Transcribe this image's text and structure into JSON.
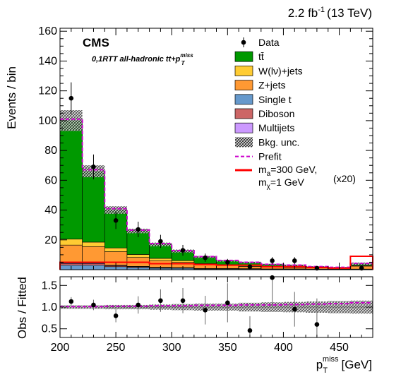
{
  "header": {
    "lumi": "2.2 fb",
    "lumi_exp": "-1",
    "energy": "(13 TeV)",
    "experiment": "CMS",
    "subtitle": "0,1RTT all-hadronic tt+p",
    "subtitle_sup": "miss",
    "subtitle_sub": "T"
  },
  "chart_data": [
    {
      "type": "bar",
      "stacked": true,
      "ylabel": "Events / bin",
      "ylim": [
        0,
        162
      ],
      "yticks": [
        20,
        40,
        60,
        80,
        100,
        120,
        140,
        160
      ],
      "xlim": [
        200,
        480
      ],
      "bin_edges": [
        200,
        220,
        240,
        260,
        280,
        300,
        320,
        340,
        360,
        380,
        400,
        420,
        440,
        460,
        480
      ],
      "series": [
        {
          "name": "Single t",
          "color": "#6699cc",
          "values": [
            3,
            3,
            2,
            1.5,
            1,
            1,
            0.5,
            0.5,
            0.5,
            0.3,
            0.3,
            0.2,
            0.2,
            0.2
          ]
        },
        {
          "name": "Diboson",
          "color": "#cc6666",
          "values": [
            1,
            1,
            0.8,
            0.5,
            0.4,
            0.3,
            0.2,
            0.2,
            0.1,
            0.1,
            0.1,
            0.1,
            0.1,
            0.1
          ]
        },
        {
          "name": "Multijets",
          "color": "#cc99ff",
          "values": [
            0.5,
            0.5,
            0.3,
            0.2,
            0.2,
            0.1,
            0.1,
            0.1,
            0.1,
            0.1,
            0.1,
            0.1,
            0.1,
            0.1
          ]
        },
        {
          "name": "Z+jets",
          "color": "#ff9933",
          "values": [
            12,
            11,
            9,
            6,
            4.5,
            3.5,
            2.5,
            2,
            1.5,
            1.3,
            1,
            0.8,
            0.6,
            2
          ]
        },
        {
          "name": "W(lν)+jets",
          "color": "#ffcc33",
          "values": [
            4,
            3,
            2.5,
            2,
            1.5,
            1.2,
            0.8,
            0.6,
            0.5,
            0.4,
            0.3,
            0.2,
            0.2,
            0.4
          ]
        },
        {
          "name": "tt̄",
          "color": "#009900",
          "values": [
            79.5,
            47.5,
            25.4,
            15.8,
            9.4,
            6.4,
            4.4,
            2.6,
            2.1,
            1.3,
            1.2,
            0.6,
            0.3,
            1.2
          ]
        }
      ],
      "total_prediction": [
        100,
        66,
        40,
        26,
        17,
        12.5,
        8.5,
        6,
        4.8,
        3.5,
        3,
        2,
        1.5,
        4
      ],
      "bkg_unc": [
        7,
        4,
        2.5,
        1.5,
        1.2,
        1,
        0.7,
        0.5,
        0.5,
        0.4,
        0.4,
        0.3,
        0.3,
        0.8
      ],
      "prefit": [
        101,
        67,
        41,
        26.5,
        17.5,
        12.8,
        8.8,
        6.2,
        5,
        3.6,
        3.1,
        2.1,
        1.6,
        4.2
      ],
      "signal": {
        "name": "ma=300 GeV, mχ=1 GeV (x20)",
        "color": "#ff0000",
        "values": [
          5,
          5,
          5,
          5,
          4,
          4,
          3.5,
          3,
          3,
          2,
          2,
          1.5,
          1,
          9
        ]
      },
      "data": {
        "name": "Data",
        "x": [
          210,
          230,
          250,
          270,
          290,
          310,
          330,
          350,
          370,
          390,
          410,
          430,
          450,
          470
        ],
        "y": [
          115,
          69,
          33,
          27,
          19,
          13,
          8,
          5,
          2,
          6,
          6,
          1,
          0,
          1
        ],
        "err": [
          10.7,
          8.3,
          5.7,
          5.2,
          4.4,
          3.6,
          2.8,
          2.2,
          1.4,
          2.4,
          2.4,
          1,
          0,
          1
        ]
      }
    },
    {
      "type": "scatter",
      "xlabel": "p_T^miss [GeV]",
      "ylabel": "Obs / Fitted",
      "xlim": [
        200,
        480
      ],
      "ylim": [
        0.3,
        1.7
      ],
      "yticks": [
        0.5,
        1.0,
        1.5
      ],
      "xticks": [
        200,
        250,
        300,
        350,
        400,
        450
      ],
      "ratio": {
        "x": [
          210,
          230,
          250,
          270,
          290,
          310,
          330,
          350,
          370,
          390,
          410,
          430
        ],
        "y": [
          1.13,
          1.05,
          0.8,
          1.05,
          1.15,
          1.15,
          0.93,
          1.1,
          0.46,
          1.7,
          0.95,
          0.6
        ],
        "err": [
          0.1,
          0.12,
          0.15,
          0.2,
          0.26,
          0.29,
          0.33,
          0.45,
          0.33,
          0.7,
          0.4,
          0.6
        ]
      },
      "unc_band": [
        0.04,
        0.04,
        0.05,
        0.05,
        0.06,
        0.07,
        0.08,
        0.08,
        0.1,
        0.11,
        0.12,
        0.13,
        0.14,
        0.15
      ],
      "prefit_ratio": [
        1.01,
        1.01,
        1.02,
        1.02,
        1.03,
        1.03,
        1.04,
        1.04,
        1.05,
        1.05,
        1.06,
        1.07,
        1.08,
        1.1
      ]
    }
  ],
  "legend": {
    "entries": [
      {
        "label": "Data",
        "kind": "marker"
      },
      {
        "label": "tt̄",
        "kind": "box",
        "color": "#009900"
      },
      {
        "label": "W(lν)+jets",
        "kind": "box",
        "color": "#ffcc33"
      },
      {
        "label": "Z+jets",
        "kind": "box",
        "color": "#ff9933"
      },
      {
        "label": "Single t",
        "kind": "box",
        "color": "#6699cc"
      },
      {
        "label": "Diboson",
        "kind": "box",
        "color": "#cc6666"
      },
      {
        "label": "Multijets",
        "kind": "box",
        "color": "#cc99ff"
      },
      {
        "label": "Bkg. unc.",
        "kind": "hatch"
      },
      {
        "label": "Prefit",
        "kind": "dash",
        "color": "#cc00cc"
      }
    ],
    "signal_line1": "m",
    "signal_line1_sub": "a",
    "signal_line1_rest": "=300 GeV,",
    "signal_line2": "m",
    "signal_line2_sub": "χ",
    "signal_line2_rest": "=1 GeV",
    "signal_scale": "(x20)"
  }
}
